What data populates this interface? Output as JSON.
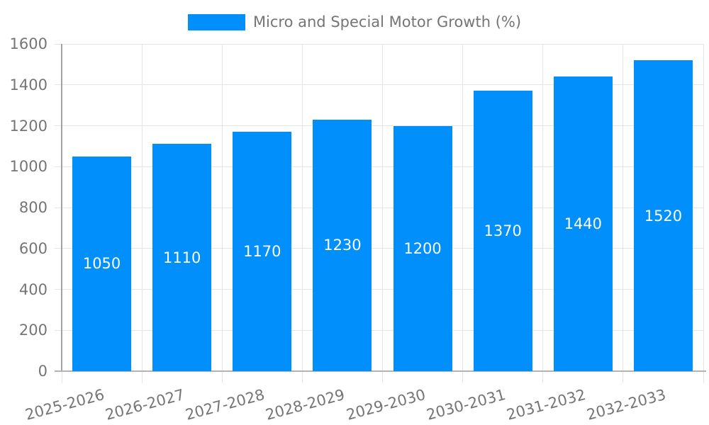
{
  "chart_data": {
    "type": "bar",
    "legend": "Micro and Special Motor Growth (%)",
    "legend_position": "top",
    "categories": [
      "2025-2026",
      "2026-2027",
      "2027-2028",
      "2028-2029",
      "2029-2030",
      "2030-2031",
      "2031-2032",
      "2032-2033"
    ],
    "series": [
      {
        "name": "Micro and Special Motor Growth (%)",
        "values": [
          1050,
          1110,
          1170,
          1230,
          1200,
          1370,
          1440,
          1520
        ]
      }
    ],
    "data_labels": [
      "1050",
      "1110",
      "1170",
      "1230",
      "1200",
      "1370",
      "1440",
      "1520"
    ],
    "xlabel": "",
    "ylabel": "",
    "ylim": [
      0,
      1600
    ],
    "ytick_step": 200,
    "ytick_labels": [
      "0",
      "200",
      "400",
      "600",
      "800",
      "1000",
      "1200",
      "1400",
      "1600"
    ],
    "grid": true,
    "x_label_rotation_deg": -15,
    "colors": {
      "bar": "#008FFB",
      "text": "#757575",
      "grid": "#e5e5e5",
      "axis": "#a3a3a3",
      "baseline": "#b3b3b3",
      "bar_label": "#ffffff"
    }
  }
}
